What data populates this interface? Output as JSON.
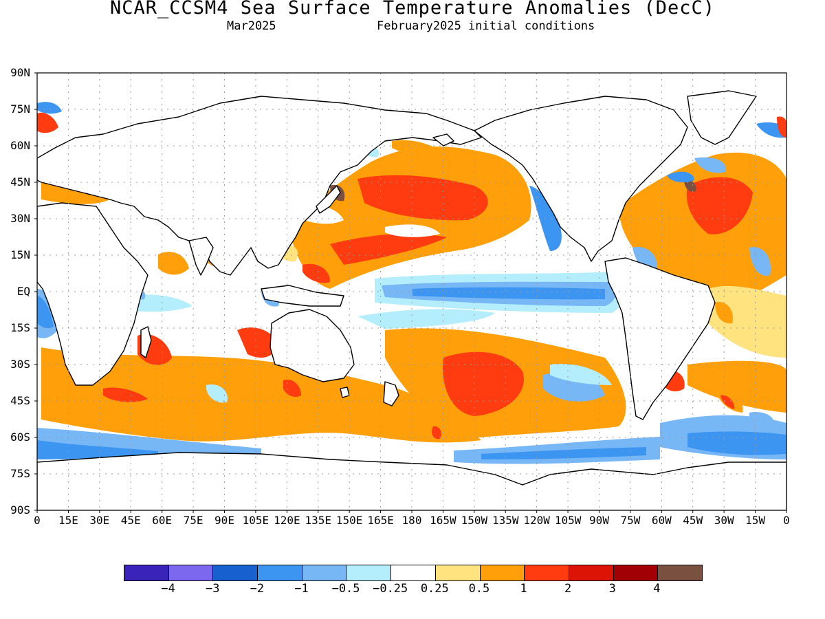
{
  "title": "NCAR_CCSM4 Sea Surface Temperature Anomalies (DecC)",
  "subtitle_left": "Mar2025",
  "subtitle_right": "February2025 initial conditions",
  "lat_labels": [
    "90N",
    "75N",
    "60N",
    "45N",
    "30N",
    "15N",
    "EQ",
    "15S",
    "30S",
    "45S",
    "60S",
    "75S",
    "90S"
  ],
  "lon_labels": [
    "0",
    "15E",
    "30E",
    "45E",
    "60E",
    "75E",
    "90E",
    "105E",
    "120E",
    "135E",
    "150E",
    "165E",
    "180",
    "165W",
    "150W",
    "135W",
    "120W",
    "105W",
    "90W",
    "75W",
    "60W",
    "45W",
    "30W",
    "15W",
    "0"
  ],
  "colorbar": {
    "colors": [
      "#3a23b8",
      "#7b68ee",
      "#1660cf",
      "#3c96f1",
      "#78b7f6",
      "#b4edfb",
      "#ffffff",
      "#fee37f",
      "#ff9f0a",
      "#ff3c0f",
      "#dc1405",
      "#a10004",
      "#7a5040"
    ],
    "labels": [
      "−4",
      "−3",
      "−2",
      "−1",
      "−0.5",
      "−0.25",
      "0.25",
      "0.5",
      "1",
      "2",
      "3",
      "4"
    ]
  },
  "colors": {
    "ocean": "#ffffff",
    "coast": "#000000",
    "grid": "#9a9a9a"
  }
}
